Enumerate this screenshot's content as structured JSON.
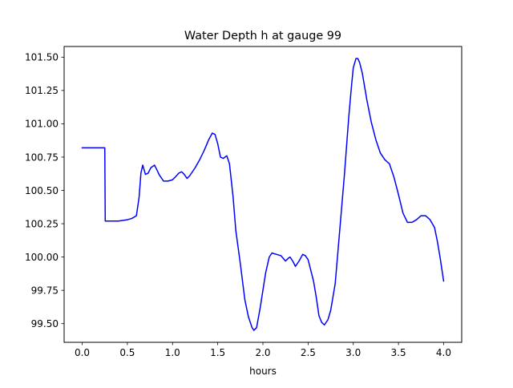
{
  "chart_data": {
    "type": "line",
    "title": "Water Depth h at gauge 99",
    "xlabel": "hours",
    "ylabel": "",
    "xlim": [
      -0.2,
      4.2
    ],
    "ylim": [
      99.36,
      101.58
    ],
    "xticks": [
      0.0,
      0.5,
      1.0,
      1.5,
      2.0,
      2.5,
      3.0,
      3.5,
      4.0
    ],
    "xtick_labels": [
      "0.0",
      "0.5",
      "1.0",
      "1.5",
      "2.0",
      "2.5",
      "3.0",
      "3.5",
      "4.0"
    ],
    "yticks": [
      99.5,
      99.75,
      100.0,
      100.25,
      100.5,
      100.75,
      101.0,
      101.25,
      101.5
    ],
    "ytick_labels": [
      "99.50",
      "99.75",
      "100.00",
      "100.25",
      "100.50",
      "100.75",
      "101.00",
      "101.25",
      "101.50"
    ],
    "grid": false,
    "series": [
      {
        "color": "#0000ff",
        "x": [
          0.0,
          0.1,
          0.2,
          0.25,
          0.255,
          0.3,
          0.4,
          0.5,
          0.55,
          0.6,
          0.63,
          0.65,
          0.67,
          0.7,
          0.73,
          0.76,
          0.8,
          0.83,
          0.85,
          0.9,
          0.95,
          1.0,
          1.03,
          1.07,
          1.1,
          1.13,
          1.16,
          1.19,
          1.22,
          1.25,
          1.3,
          1.35,
          1.4,
          1.44,
          1.47,
          1.5,
          1.53,
          1.56,
          1.6,
          1.63,
          1.67,
          1.7,
          1.75,
          1.8,
          1.84,
          1.88,
          1.9,
          1.93,
          1.97,
          2.0,
          2.03,
          2.07,
          2.1,
          2.15,
          2.2,
          2.25,
          2.28,
          2.3,
          2.33,
          2.36,
          2.4,
          2.44,
          2.47,
          2.5,
          2.53,
          2.56,
          2.59,
          2.62,
          2.65,
          2.68,
          2.72,
          2.75,
          2.8,
          2.85,
          2.9,
          2.95,
          2.98,
          3.0,
          3.03,
          3.05,
          3.07,
          3.1,
          3.15,
          3.2,
          3.25,
          3.3,
          3.35,
          3.4,
          3.45,
          3.5,
          3.55,
          3.6,
          3.65,
          3.7,
          3.75,
          3.8,
          3.85,
          3.9,
          3.93,
          3.96,
          4.0
        ],
        "y": [
          100.82,
          100.82,
          100.82,
          100.82,
          100.27,
          100.27,
          100.27,
          100.28,
          100.29,
          100.31,
          100.45,
          100.63,
          100.69,
          100.62,
          100.63,
          100.67,
          100.69,
          100.65,
          100.62,
          100.57,
          100.57,
          100.58,
          100.6,
          100.63,
          100.64,
          100.62,
          100.59,
          100.61,
          100.64,
          100.67,
          100.73,
          100.8,
          100.88,
          100.93,
          100.92,
          100.85,
          100.75,
          100.74,
          100.76,
          100.7,
          100.45,
          100.2,
          99.95,
          99.68,
          99.55,
          99.47,
          99.45,
          99.47,
          99.62,
          99.75,
          99.88,
          100.0,
          100.03,
          100.02,
          100.01,
          99.97,
          99.99,
          100.0,
          99.97,
          99.93,
          99.97,
          100.02,
          100.01,
          99.98,
          99.9,
          99.82,
          99.7,
          99.56,
          99.51,
          99.49,
          99.53,
          99.6,
          99.8,
          100.2,
          100.6,
          101.05,
          101.28,
          101.42,
          101.49,
          101.49,
          101.46,
          101.38,
          101.18,
          101.01,
          100.88,
          100.78,
          100.73,
          100.7,
          100.6,
          100.47,
          100.33,
          100.26,
          100.26,
          100.28,
          100.31,
          100.31,
          100.28,
          100.22,
          100.12,
          100.0,
          99.82
        ]
      }
    ]
  }
}
